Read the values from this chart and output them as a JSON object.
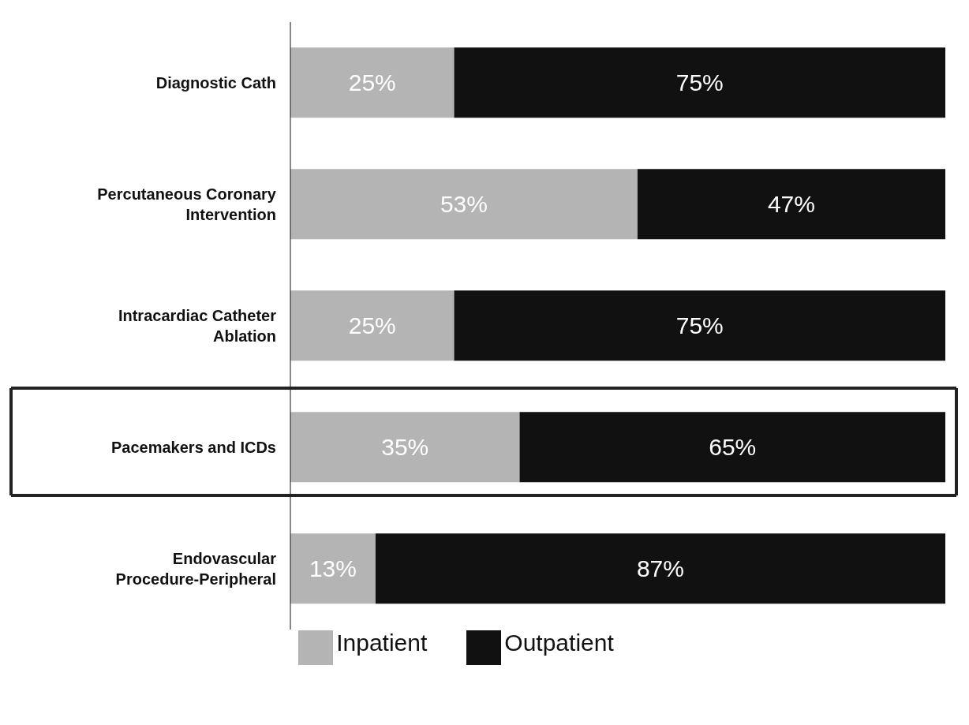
{
  "chart_data": {
    "type": "bar",
    "orientation": "horizontal",
    "stacked": true,
    "categories": [
      "Diagnostic Cath",
      "Percutaneous Coronary Intervention",
      "Intracardiac Catheter Ablation",
      "Pacemakers and ICDs",
      "Endovascular Procedure-Peripheral"
    ],
    "series": [
      {
        "name": "Inpatient",
        "color": "#b4b4b4",
        "values": [
          25,
          53,
          25,
          35,
          13
        ],
        "value_labels": [
          "25%",
          "53%",
          "25%",
          "35%",
          "13%"
        ]
      },
      {
        "name": "Outpatient",
        "color": "#111111",
        "values": [
          75,
          47,
          75,
          65,
          87
        ],
        "value_labels": [
          "75%",
          "47%",
          "75%",
          "65%",
          "87%"
        ]
      }
    ],
    "xlim": [
      0,
      100
    ],
    "tick_labels": "y",
    "grid": false,
    "legend": "bottom"
  }
}
